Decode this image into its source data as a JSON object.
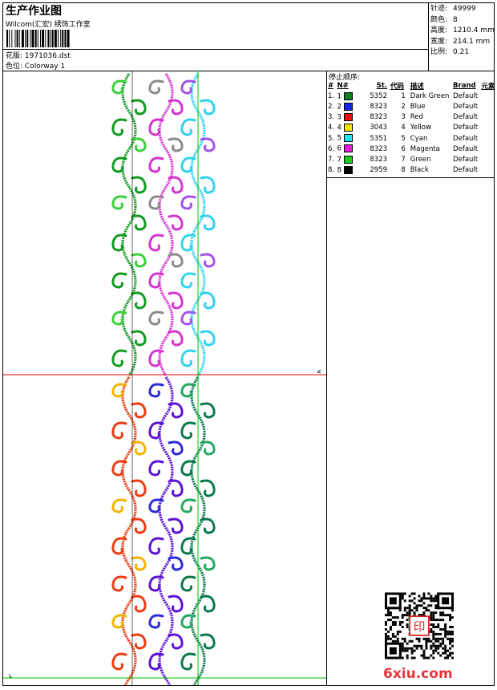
{
  "header": {
    "title": "生产作业图",
    "subtitle": "Wilcom(汇宏) 绣饰工作室"
  },
  "file": {
    "design_label": "花版:",
    "design_value": "1971036.dst",
    "colorway_label": "色位:",
    "colorway_value": "Colorway 1"
  },
  "stats": [
    {
      "label": "针迹:",
      "value": "49999"
    },
    {
      "label": "颜色:",
      "value": "8"
    },
    {
      "label": "高度:",
      "value": "1210.4 mm"
    },
    {
      "label": "宽度:",
      "value": "214.1 mm"
    },
    {
      "label": "比例:",
      "value": "0.21"
    }
  ],
  "stop_sequence": {
    "title": "停止顺序:",
    "columns": [
      "#",
      "N#",
      "St.",
      "代码",
      "描述",
      "Brand",
      "元素"
    ],
    "rows": [
      {
        "num": "1.",
        "n": "1",
        "color": "#0f7d20",
        "st": "5352",
        "code": "1",
        "desc": "Dark Green",
        "brand": "Default"
      },
      {
        "num": "2.",
        "n": "2",
        "color": "#1326e6",
        "st": "8323",
        "code": "2",
        "desc": "Blue",
        "brand": "Default"
      },
      {
        "num": "3.",
        "n": "3",
        "color": "#e81010",
        "st": "8323",
        "code": "3",
        "desc": "Red",
        "brand": "Default"
      },
      {
        "num": "4.",
        "n": "4",
        "color": "#f2e600",
        "st": "3043",
        "code": "4",
        "desc": "Yellow",
        "brand": "Default"
      },
      {
        "num": "5.",
        "n": "5",
        "color": "#1ee4ee",
        "st": "5351",
        "code": "5",
        "desc": "Cyan",
        "brand": "Default"
      },
      {
        "num": "6.",
        "n": "6",
        "color": "#e21ed8",
        "st": "8323",
        "code": "6",
        "desc": "Magenta",
        "brand": "Default"
      },
      {
        "num": "7.",
        "n": "7",
        "color": "#1dc91d",
        "st": "8323",
        "code": "7",
        "desc": "Green",
        "brand": "Default"
      },
      {
        "num": "8.",
        "n": "8",
        "color": "#000000",
        "st": "2959",
        "code": "8",
        "desc": "Black",
        "brand": "Default"
      }
    ]
  },
  "watermark": "6xiu.com",
  "stamp_text": "印"
}
